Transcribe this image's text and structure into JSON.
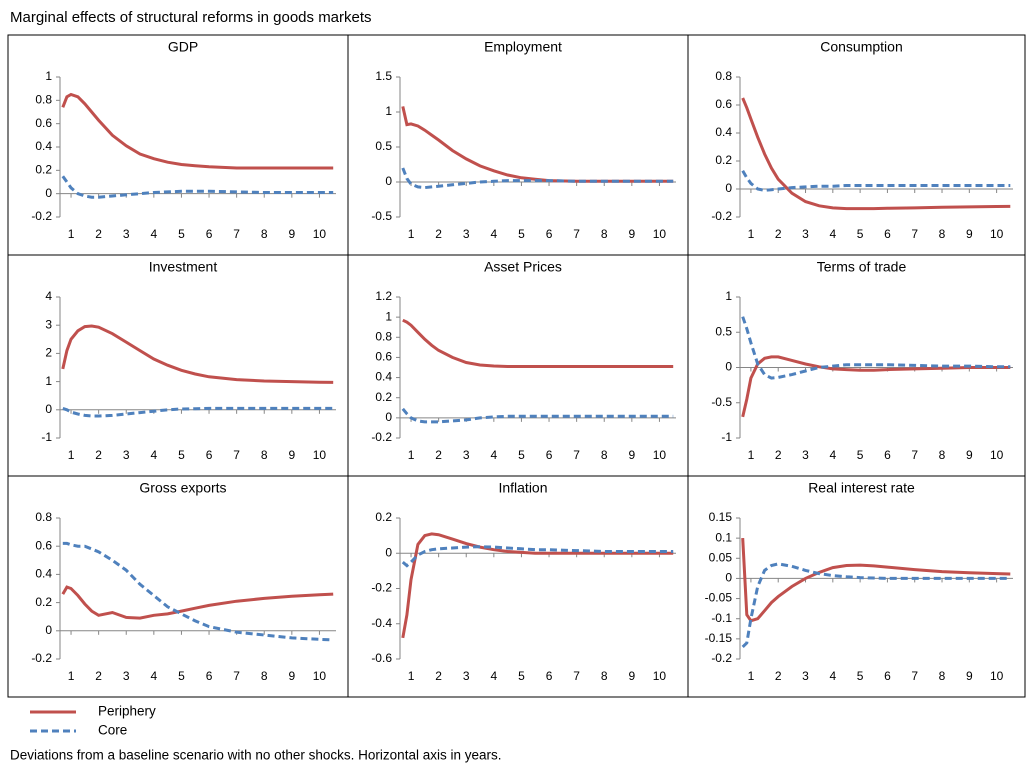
{
  "title": "Marginal effects of structural reforms in goods markets",
  "note": "Deviations from a baseline scenario with no other shocks. Horizontal axis in years.",
  "chart_data": [
    {
      "type": "line",
      "title": "GDP",
      "x": [
        0.7,
        0.85,
        1,
        1.25,
        1.5,
        1.75,
        2,
        2.5,
        3,
        3.5,
        4,
        4.5,
        5,
        5.5,
        6,
        7,
        8,
        9,
        10,
        10.5
      ],
      "xlim": [
        0.6,
        10.6
      ],
      "xticks": [
        1,
        2,
        3,
        4,
        5,
        6,
        7,
        8,
        9,
        10
      ],
      "ylim": [
        -0.2,
        1
      ],
      "yticks": [
        -0.2,
        0,
        0.2,
        0.4,
        0.6,
        0.8,
        1
      ],
      "series": [
        {
          "name": "Periphery",
          "color": "#c0504d",
          "style": "solid",
          "values": [
            0.74,
            0.83,
            0.85,
            0.83,
            0.77,
            0.7,
            0.63,
            0.5,
            0.41,
            0.34,
            0.3,
            0.27,
            0.25,
            0.24,
            0.23,
            0.22,
            0.22,
            0.22,
            0.22,
            0.22
          ]
        },
        {
          "name": "Core",
          "color": "#4f81bd",
          "style": "dashed",
          "values": [
            0.15,
            0.1,
            0.05,
            0,
            -0.02,
            -0.03,
            -0.03,
            -0.02,
            -0.01,
            0,
            0.01,
            0.015,
            0.02,
            0.02,
            0.02,
            0.015,
            0.01,
            0.01,
            0.01,
            0.01
          ]
        }
      ]
    },
    {
      "type": "line",
      "title": "Employment",
      "x": [
        0.7,
        0.85,
        1,
        1.25,
        1.5,
        1.75,
        2,
        2.5,
        3,
        3.5,
        4,
        4.5,
        5,
        5.5,
        6,
        7,
        8,
        9,
        10,
        10.5
      ],
      "xlim": [
        0.6,
        10.6
      ],
      "xticks": [
        1,
        2,
        3,
        4,
        5,
        6,
        7,
        8,
        9,
        10
      ],
      "ylim": [
        -0.5,
        1.5
      ],
      "yticks": [
        -0.5,
        0,
        0.5,
        1,
        1.5
      ],
      "series": [
        {
          "name": "Periphery",
          "color": "#c0504d",
          "style": "solid",
          "values": [
            1.08,
            0.82,
            0.83,
            0.8,
            0.74,
            0.67,
            0.6,
            0.45,
            0.33,
            0.23,
            0.16,
            0.1,
            0.06,
            0.04,
            0.02,
            0.01,
            0.01,
            0.01,
            0.01,
            0.01
          ]
        },
        {
          "name": "Core",
          "color": "#4f81bd",
          "style": "dashed",
          "values": [
            0.2,
            0.05,
            -0.03,
            -0.07,
            -0.08,
            -0.07,
            -0.06,
            -0.04,
            -0.02,
            0,
            0.01,
            0.02,
            0.02,
            0.02,
            0.02,
            0.01,
            0.01,
            0.01,
            0.01,
            0.01
          ]
        }
      ]
    },
    {
      "type": "line",
      "title": "Consumption",
      "x": [
        0.7,
        0.85,
        1,
        1.25,
        1.5,
        1.75,
        2,
        2.5,
        3,
        3.5,
        4,
        4.5,
        5,
        5.5,
        6,
        7,
        8,
        9,
        10,
        10.5
      ],
      "xlim": [
        0.6,
        10.6
      ],
      "xticks": [
        1,
        2,
        3,
        4,
        5,
        6,
        7,
        8,
        9,
        10
      ],
      "ylim": [
        -0.2,
        0.8
      ],
      "yticks": [
        -0.2,
        0,
        0.2,
        0.4,
        0.6,
        0.8
      ],
      "series": [
        {
          "name": "Periphery",
          "color": "#c0504d",
          "style": "solid",
          "values": [
            0.65,
            0.58,
            0.5,
            0.37,
            0.25,
            0.15,
            0.07,
            -0.03,
            -0.09,
            -0.12,
            -0.135,
            -0.14,
            -0.14,
            -0.14,
            -0.138,
            -0.135,
            -0.13,
            -0.128,
            -0.125,
            -0.124
          ]
        },
        {
          "name": "Core",
          "color": "#4f81bd",
          "style": "dashed",
          "values": [
            0.13,
            0.08,
            0.04,
            0,
            -0.01,
            -0.005,
            0,
            0.01,
            0.015,
            0.02,
            0.02,
            0.025,
            0.025,
            0.025,
            0.025,
            0.025,
            0.025,
            0.025,
            0.025,
            0.025
          ]
        }
      ]
    },
    {
      "type": "line",
      "title": "Investment",
      "x": [
        0.7,
        0.85,
        1,
        1.25,
        1.5,
        1.75,
        2,
        2.5,
        3,
        3.5,
        4,
        4.5,
        5,
        5.5,
        6,
        7,
        8,
        9,
        10,
        10.5
      ],
      "xlim": [
        0.6,
        10.6
      ],
      "xticks": [
        1,
        2,
        3,
        4,
        5,
        6,
        7,
        8,
        9,
        10
      ],
      "ylim": [
        -1,
        4
      ],
      "yticks": [
        -1,
        0,
        1,
        2,
        3,
        4
      ],
      "series": [
        {
          "name": "Periphery",
          "color": "#c0504d",
          "style": "solid",
          "values": [
            1.45,
            2.1,
            2.5,
            2.8,
            2.95,
            2.97,
            2.93,
            2.7,
            2.4,
            2.1,
            1.8,
            1.58,
            1.4,
            1.27,
            1.17,
            1.07,
            1.02,
            1,
            0.98,
            0.97
          ]
        },
        {
          "name": "Core",
          "color": "#4f81bd",
          "style": "dashed",
          "values": [
            0.05,
            0,
            -0.08,
            -0.15,
            -0.2,
            -0.22,
            -0.22,
            -0.2,
            -0.15,
            -0.1,
            -0.05,
            0,
            0.03,
            0.04,
            0.05,
            0.05,
            0.05,
            0.05,
            0.05,
            0.05
          ]
        }
      ]
    },
    {
      "type": "line",
      "title": "Asset Prices",
      "x": [
        0.7,
        0.85,
        1,
        1.25,
        1.5,
        1.75,
        2,
        2.5,
        3,
        3.5,
        4,
        4.5,
        5,
        5.5,
        6,
        7,
        8,
        9,
        10,
        10.5
      ],
      "xlim": [
        0.6,
        10.6
      ],
      "xticks": [
        1,
        2,
        3,
        4,
        5,
        6,
        7,
        8,
        9,
        10
      ],
      "ylim": [
        -0.2,
        1.2
      ],
      "yticks": [
        -0.2,
        0,
        0.2,
        0.4,
        0.6,
        0.8,
        1,
        1.2
      ],
      "series": [
        {
          "name": "Periphery",
          "color": "#c0504d",
          "style": "solid",
          "values": [
            0.97,
            0.95,
            0.92,
            0.85,
            0.78,
            0.72,
            0.67,
            0.6,
            0.55,
            0.525,
            0.515,
            0.51,
            0.51,
            0.51,
            0.51,
            0.51,
            0.51,
            0.51,
            0.51,
            0.51
          ]
        },
        {
          "name": "Core",
          "color": "#4f81bd",
          "style": "dashed",
          "values": [
            0.09,
            0.04,
            0,
            -0.03,
            -0.04,
            -0.04,
            -0.04,
            -0.03,
            -0.02,
            0,
            0.01,
            0.015,
            0.015,
            0.015,
            0.015,
            0.015,
            0.015,
            0.015,
            0.015,
            0.015
          ]
        }
      ]
    },
    {
      "type": "line",
      "title": "Terms of trade",
      "x": [
        0.7,
        0.85,
        1,
        1.25,
        1.5,
        1.75,
        2,
        2.5,
        3,
        3.5,
        4,
        4.5,
        5,
        5.5,
        6,
        7,
        8,
        9,
        10,
        10.5
      ],
      "xlim": [
        0.6,
        10.6
      ],
      "xticks": [
        1,
        2,
        3,
        4,
        5,
        6,
        7,
        8,
        9,
        10
      ],
      "ylim": [
        -1,
        1
      ],
      "yticks": [
        -1,
        -0.5,
        0,
        0.5,
        1
      ],
      "series": [
        {
          "name": "Periphery",
          "color": "#c0504d",
          "style": "solid",
          "values": [
            -0.7,
            -0.45,
            -0.15,
            0.05,
            0.13,
            0.15,
            0.15,
            0.1,
            0.05,
            0.01,
            -0.02,
            -0.03,
            -0.04,
            -0.04,
            -0.03,
            -0.02,
            -0.01,
            0,
            0,
            0
          ]
        },
        {
          "name": "Core",
          "color": "#4f81bd",
          "style": "dashed",
          "values": [
            0.72,
            0.55,
            0.35,
            0.05,
            -0.1,
            -0.15,
            -0.14,
            -0.1,
            -0.05,
            0,
            0.02,
            0.04,
            0.04,
            0.04,
            0.04,
            0.03,
            0.02,
            0.02,
            0.01,
            0.01
          ]
        }
      ]
    },
    {
      "type": "line",
      "title": "Gross exports",
      "x": [
        0.7,
        0.85,
        1,
        1.25,
        1.5,
        1.75,
        2,
        2.5,
        3,
        3.5,
        4,
        4.5,
        5,
        5.5,
        6,
        7,
        8,
        9,
        10,
        10.5
      ],
      "xlim": [
        0.6,
        10.6
      ],
      "xticks": [
        1,
        2,
        3,
        4,
        5,
        6,
        7,
        8,
        9,
        10
      ],
      "ylim": [
        -0.2,
        0.8
      ],
      "yticks": [
        -0.2,
        0,
        0.2,
        0.4,
        0.6,
        0.8
      ],
      "series": [
        {
          "name": "Periphery",
          "color": "#c0504d",
          "style": "solid",
          "values": [
            0.26,
            0.31,
            0.3,
            0.25,
            0.19,
            0.14,
            0.11,
            0.13,
            0.095,
            0.09,
            0.11,
            0.12,
            0.14,
            0.16,
            0.18,
            0.21,
            0.23,
            0.245,
            0.255,
            0.26
          ]
        },
        {
          "name": "Core",
          "color": "#4f81bd",
          "style": "dashed",
          "values": [
            0.62,
            0.62,
            0.61,
            0.6,
            0.6,
            0.58,
            0.56,
            0.5,
            0.43,
            0.33,
            0.25,
            0.17,
            0.12,
            0.07,
            0.03,
            -0.01,
            -0.03,
            -0.05,
            -0.06,
            -0.065
          ]
        }
      ]
    },
    {
      "type": "line",
      "title": "Inflation",
      "x": [
        0.7,
        0.85,
        1,
        1.25,
        1.5,
        1.75,
        2,
        2.5,
        3,
        3.5,
        4,
        4.5,
        5,
        5.5,
        6,
        7,
        8,
        9,
        10,
        10.5
      ],
      "xlim": [
        0.6,
        10.6
      ],
      "xticks": [
        1,
        2,
        3,
        4,
        5,
        6,
        7,
        8,
        9,
        10
      ],
      "ylim": [
        -0.6,
        0.2
      ],
      "yticks": [
        -0.6,
        -0.4,
        -0.2,
        0,
        0.2
      ],
      "series": [
        {
          "name": "Periphery",
          "color": "#c0504d",
          "style": "solid",
          "values": [
            -0.48,
            -0.35,
            -0.15,
            0.05,
            0.1,
            0.11,
            0.105,
            0.08,
            0.055,
            0.035,
            0.02,
            0.01,
            0.005,
            0,
            0,
            0,
            0,
            0,
            0,
            0
          ]
        },
        {
          "name": "Core",
          "color": "#4f81bd",
          "style": "dashed",
          "values": [
            -0.05,
            -0.07,
            -0.05,
            -0.01,
            0.01,
            0.02,
            0.025,
            0.03,
            0.035,
            0.037,
            0.035,
            0.03,
            0.025,
            0.02,
            0.02,
            0.015,
            0.01,
            0.01,
            0.01,
            0.01
          ]
        }
      ]
    },
    {
      "type": "line",
      "title": "Real interest rate",
      "x": [
        0.7,
        0.85,
        1,
        1.25,
        1.5,
        1.75,
        2,
        2.5,
        3,
        3.5,
        4,
        4.5,
        5,
        5.5,
        6,
        7,
        8,
        9,
        10,
        10.5
      ],
      "xlim": [
        0.6,
        10.6
      ],
      "xticks": [
        1,
        2,
        3,
        4,
        5,
        6,
        7,
        8,
        9,
        10
      ],
      "ylim": [
        -0.2,
        0.15
      ],
      "yticks": [
        -0.2,
        -0.15,
        -0.1,
        -0.05,
        0,
        0.05,
        0.1,
        0.15
      ],
      "series": [
        {
          "name": "Periphery",
          "color": "#c0504d",
          "style": "solid",
          "values": [
            0.1,
            -0.09,
            -0.105,
            -0.1,
            -0.08,
            -0.06,
            -0.045,
            -0.02,
            0,
            0.015,
            0.027,
            0.032,
            0.033,
            0.031,
            0.028,
            0.022,
            0.017,
            0.014,
            0.012,
            0.011
          ]
        },
        {
          "name": "Core",
          "color": "#4f81bd",
          "style": "dashed",
          "values": [
            -0.17,
            -0.16,
            -0.1,
            -0.02,
            0.02,
            0.032,
            0.036,
            0.03,
            0.02,
            0.012,
            0.007,
            0.004,
            0.002,
            0.001,
            0,
            0,
            0,
            0,
            0,
            0
          ]
        }
      ]
    }
  ]
}
